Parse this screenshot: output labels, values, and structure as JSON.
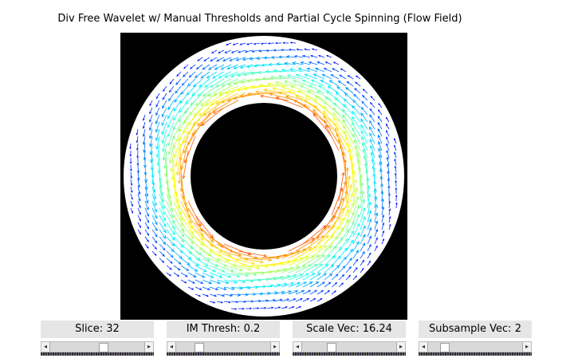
{
  "title": "Div Free Wavelet w/ Manual Thresholds and Partial Cycle Spinning (Flow Field)",
  "plot": {
    "background": "#000000",
    "ring_color": "#ffffff",
    "colormap": [
      "#0000ff",
      "#00ffff",
      "#ffff00",
      "#ff0000"
    ],
    "field": "counter-clockwise rotational flow in annulus, magnitude peaking at inner rim"
  },
  "controls": [
    {
      "label": "Slice: 32",
      "value": 0.55
    },
    {
      "label": "IM Thresh: 0.2",
      "value": 0.2
    },
    {
      "label": "Scale Vec: 16.24",
      "value": 0.3
    },
    {
      "label": "Subsample Vec: 2",
      "value": 0.05
    }
  ]
}
